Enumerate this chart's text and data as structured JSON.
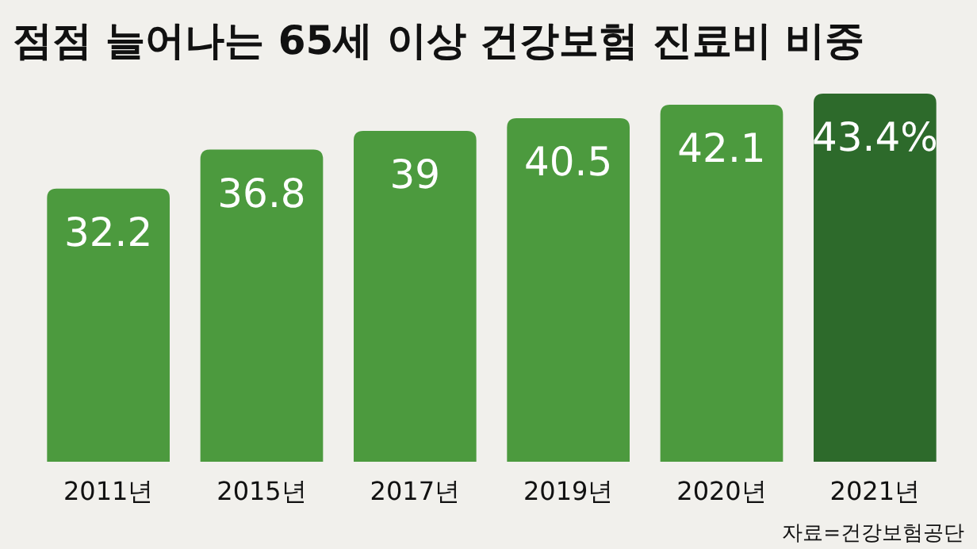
{
  "chart_data": {
    "type": "bar",
    "title": "점점 늘어나는 65세 이상 건강보험 진료비 비중",
    "categories": [
      "2011년",
      "2015년",
      "2017년",
      "2019년",
      "2020년",
      "2021년"
    ],
    "values": [
      32.2,
      36.8,
      39,
      40.5,
      42.1,
      43.4
    ],
    "colors": [
      "#4c9a3e",
      "#4c9a3e",
      "#4c9a3e",
      "#4c9a3e",
      "#4c9a3e",
      "#2d6a2b"
    ],
    "value_labels": [
      "32.2",
      "36.8",
      "39",
      "40.5",
      "42.1",
      "43.4%"
    ],
    "annotations": [
      "자료=건강보험공단"
    ]
  }
}
